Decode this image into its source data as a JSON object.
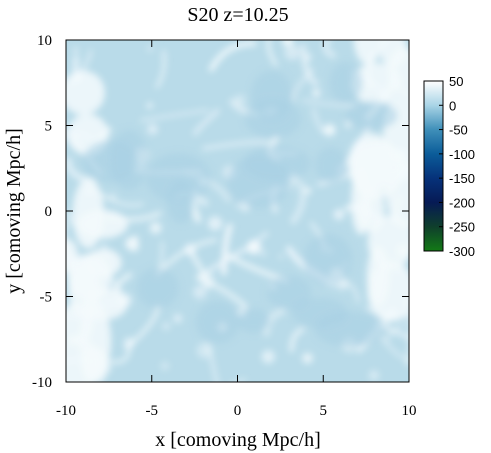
{
  "chart_data": {
    "type": "heatmap",
    "title": "S20 z=10.25",
    "xlabel": "x [comoving Mpc/h]",
    "ylabel": "y [comoving Mpc/h]",
    "xlim": [
      -10,
      10
    ],
    "ylim": [
      -10,
      10
    ],
    "xticks": [
      "-10",
      "-5",
      "0",
      "5",
      "10"
    ],
    "yticks": [
      "10",
      "5",
      "0",
      "-5",
      "-10"
    ],
    "xtick_values": [
      -10,
      -5,
      0,
      5,
      10
    ],
    "ytick_values": [
      10,
      5,
      0,
      -5,
      -10
    ],
    "grid": false,
    "colorbar": {
      "range": [
        -300,
        50
      ],
      "labels": [
        "50",
        "0",
        "-50",
        "-100",
        "-150",
        "-200",
        "-250",
        "-300"
      ],
      "values": [
        50,
        0,
        -50,
        -100,
        -150,
        -200,
        -250,
        -300
      ],
      "colors": [
        "#ffffff",
        "#a9d4e6",
        "#3f8fb9",
        "#0b5c99",
        "#06327a",
        "#061a55",
        "#0f3f2c",
        "#137a16"
      ]
    },
    "field_description_colors": {
      "background": "#b9dbe9",
      "filament": "#f4fafd"
    }
  }
}
